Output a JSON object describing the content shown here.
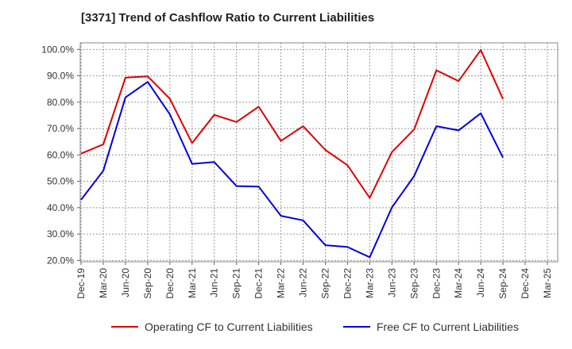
{
  "title": "[3371]  Trend of Cashflow Ratio to Current Liabilities",
  "colors": {
    "operating": "#e00000",
    "free": "#0000dd"
  },
  "chart_data": {
    "type": "line",
    "title": "[3371]  Trend of Cashflow Ratio to Current Liabilities",
    "xlabel": "",
    "ylabel": "",
    "categories": [
      "Dec-19",
      "Mar-20",
      "Jun-20",
      "Sep-20",
      "Dec-20",
      "Mar-21",
      "Jun-21",
      "Sep-21",
      "Dec-21",
      "Mar-22",
      "Jun-22",
      "Sep-22",
      "Dec-22",
      "Mar-23",
      "Jun-23",
      "Sep-23",
      "Dec-23",
      "Mar-24",
      "Jun-24",
      "Sep-24",
      "Dec-24",
      "Mar-25"
    ],
    "x": [
      "Dec-19",
      "Mar-20",
      "Jun-20",
      "Sep-20",
      "Dec-20",
      "Mar-21",
      "Jun-21",
      "Sep-21",
      "Dec-21",
      "Mar-22",
      "Jun-22",
      "Sep-22",
      "Dec-22",
      "Mar-23",
      "Jun-23",
      "Sep-23",
      "Dec-23",
      "Mar-24",
      "Jun-24",
      "Sep-24"
    ],
    "series": [
      {
        "name": "Operating CF to Current Liabilities",
        "color": "#e00000",
        "values": [
          60.5,
          64.0,
          89.3,
          89.8,
          81.3,
          64.5,
          75.2,
          72.5,
          78.3,
          65.3,
          70.9,
          61.9,
          56.1,
          43.7,
          61.1,
          69.7,
          92.1,
          88.0,
          99.8,
          81.2
        ]
      },
      {
        "name": "Free CF to Current Liabilities",
        "color": "#0000dd",
        "values": [
          43.0,
          54.0,
          81.8,
          87.7,
          75.4,
          56.6,
          57.3,
          48.2,
          48.0,
          36.9,
          35.2,
          25.8,
          25.1,
          21.2,
          40.1,
          52.0,
          70.9,
          69.3,
          75.8,
          59.0
        ]
      }
    ],
    "yticks": [
      "100.0%",
      "90.0%",
      "80.0%",
      "70.0%",
      "60.0%",
      "50.0%",
      "40.0%",
      "30.0%",
      "20.0%"
    ],
    "ylim": [
      19.5,
      102.5
    ],
    "grid": true,
    "legend": "bottom"
  },
  "legend": {
    "operating_label": "Operating CF to Current Liabilities",
    "free_label": "Free CF to Current Liabilities"
  }
}
